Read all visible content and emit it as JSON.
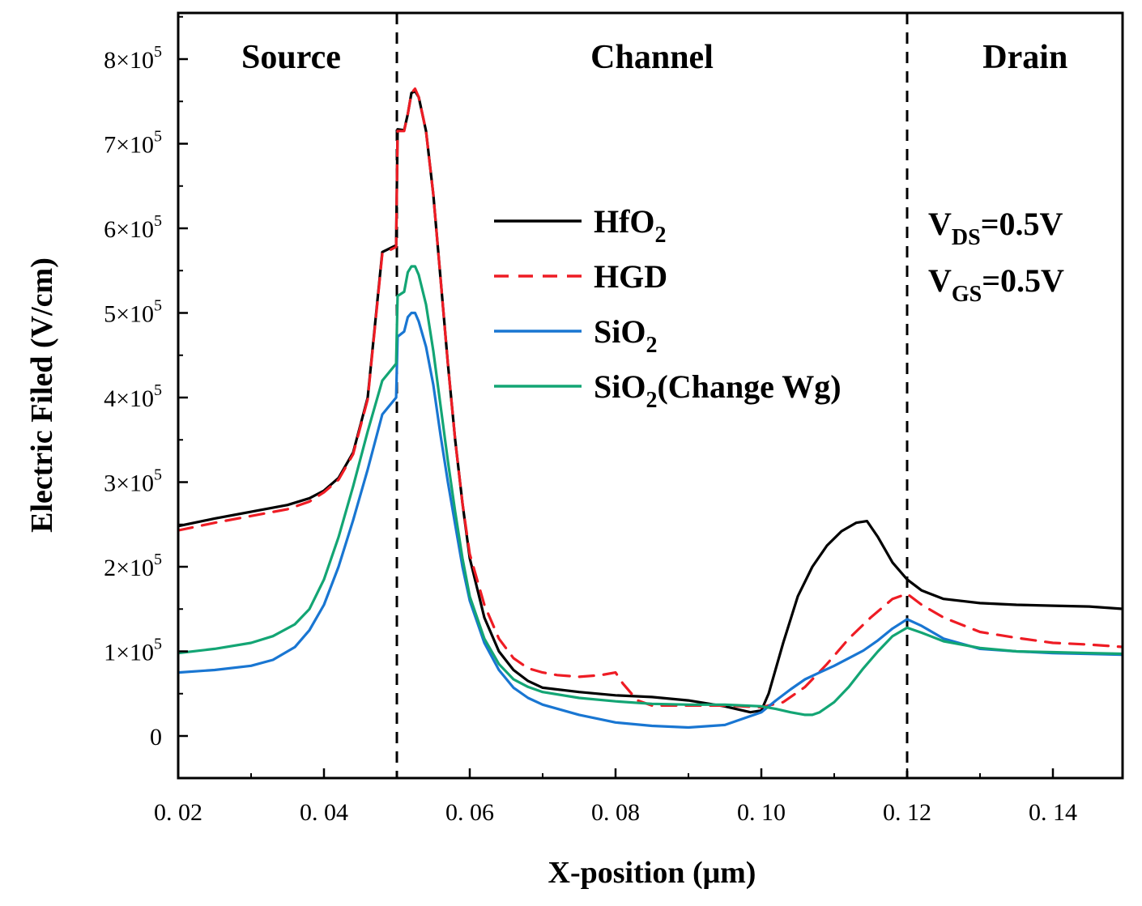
{
  "chart_data": {
    "type": "line",
    "title": "",
    "xlabel": "X-position (μm)",
    "ylabel": "Electric Filed (V/cm)",
    "xlim": [
      0.02,
      0.15
    ],
    "ylim": [
      -50000,
      850000
    ],
    "x_ticks": [
      0.02,
      0.04,
      0.06,
      0.08,
      0.1,
      0.12,
      0.14
    ],
    "x_tick_labels": [
      "0. 02",
      "0. 04",
      "0. 06",
      "0. 08",
      "0. 10",
      "0. 12",
      "0. 14"
    ],
    "y_ticks": [
      0,
      100000,
      200000,
      300000,
      400000,
      500000,
      600000,
      700000,
      800000
    ],
    "y_tick_labels": [
      {
        "mantissa": "0",
        "exp": ""
      },
      {
        "mantissa": "1×10",
        "exp": "5"
      },
      {
        "mantissa": "2×10",
        "exp": "5"
      },
      {
        "mantissa": "3×10",
        "exp": "5"
      },
      {
        "mantissa": "4×10",
        "exp": "5"
      },
      {
        "mantissa": "5×10",
        "exp": "5"
      },
      {
        "mantissa": "6×10",
        "exp": "5"
      },
      {
        "mantissa": "7×10",
        "exp": "5"
      },
      {
        "mantissa": "8×10",
        "exp": "5"
      }
    ],
    "regions": [
      {
        "label": "Source",
        "x_center": 0.0355
      },
      {
        "label": "Channel",
        "x_center": 0.085
      },
      {
        "label": "Drain",
        "x_center": 0.1362
      }
    ],
    "boundaries": [
      0.05,
      0.12
    ],
    "conditions": [
      {
        "main": "V",
        "sub": "DS",
        "rest": "=0.5V"
      },
      {
        "main": "V",
        "sub": "GS",
        "rest": "=0.5V"
      }
    ],
    "legend_position": "center",
    "series": [
      {
        "name": "HfO2",
        "legend": {
          "main": "HfO",
          "sub": "2",
          "rest": ""
        },
        "color": "#000000",
        "dash": "",
        "x": [
          0.02,
          0.025,
          0.03,
          0.035,
          0.038,
          0.04,
          0.042,
          0.044,
          0.046,
          0.048,
          0.0499,
          0.0501,
          0.051,
          0.0515,
          0.052,
          0.0525,
          0.053,
          0.054,
          0.055,
          0.056,
          0.057,
          0.058,
          0.059,
          0.06,
          0.062,
          0.064,
          0.066,
          0.068,
          0.07,
          0.075,
          0.08,
          0.085,
          0.09,
          0.095,
          0.0985,
          0.1,
          0.101,
          0.103,
          0.105,
          0.107,
          0.109,
          0.111,
          0.113,
          0.1145,
          0.116,
          0.118,
          0.12,
          0.122,
          0.125,
          0.13,
          0.135,
          0.14,
          0.145,
          0.15
        ],
        "y": [
          248000,
          257000,
          265000,
          273000,
          281000,
          290000,
          305000,
          335000,
          400000,
          572000,
          580000,
          717000,
          716000,
          735000,
          760000,
          762000,
          755000,
          715000,
          640000,
          540000,
          440000,
          350000,
          275000,
          210000,
          140000,
          100000,
          78000,
          65000,
          57000,
          52000,
          48000,
          46000,
          42000,
          35000,
          28000,
          30000,
          50000,
          110000,
          165000,
          200000,
          225000,
          242000,
          252000,
          254000,
          235000,
          205000,
          185000,
          172000,
          162000,
          157000,
          155000,
          154000,
          153000,
          150000
        ]
      },
      {
        "name": "HGD",
        "legend": {
          "main": "HGD",
          "sub": "",
          "rest": ""
        },
        "color": "#ee1c24",
        "dash": "18,12",
        "x": [
          0.02,
          0.025,
          0.03,
          0.035,
          0.038,
          0.04,
          0.042,
          0.044,
          0.046,
          0.048,
          0.0499,
          0.0501,
          0.051,
          0.0515,
          0.052,
          0.0525,
          0.053,
          0.054,
          0.055,
          0.056,
          0.057,
          0.058,
          0.059,
          0.06,
          0.062,
          0.064,
          0.066,
          0.068,
          0.07,
          0.072,
          0.075,
          0.078,
          0.08,
          0.081,
          0.083,
          0.085,
          0.09,
          0.095,
          0.1,
          0.103,
          0.106,
          0.109,
          0.112,
          0.115,
          0.118,
          0.12,
          0.122,
          0.125,
          0.13,
          0.135,
          0.14,
          0.145,
          0.15
        ],
        "y": [
          243000,
          252000,
          260000,
          268000,
          277000,
          288000,
          303000,
          333000,
          398000,
          570000,
          578000,
          715000,
          715000,
          735000,
          760000,
          765000,
          755000,
          715000,
          640000,
          540000,
          440000,
          350000,
          275000,
          215000,
          155000,
          115000,
          92000,
          80000,
          75000,
          72000,
          70000,
          72000,
          75000,
          62000,
          42000,
          36000,
          36000,
          36000,
          34000,
          40000,
          58000,
          85000,
          115000,
          140000,
          162000,
          168000,
          155000,
          140000,
          123000,
          116000,
          110000,
          108000,
          105000
        ]
      },
      {
        "name": "SiO2",
        "legend": {
          "main": "SiO",
          "sub": "2",
          "rest": ""
        },
        "color": "#1976d2",
        "dash": "",
        "x": [
          0.02,
          0.025,
          0.03,
          0.033,
          0.036,
          0.038,
          0.04,
          0.042,
          0.044,
          0.046,
          0.048,
          0.0499,
          0.0501,
          0.051,
          0.0515,
          0.052,
          0.0525,
          0.053,
          0.054,
          0.055,
          0.056,
          0.057,
          0.058,
          0.059,
          0.06,
          0.062,
          0.064,
          0.066,
          0.068,
          0.07,
          0.075,
          0.08,
          0.085,
          0.09,
          0.095,
          0.1,
          0.102,
          0.104,
          0.106,
          0.108,
          0.11,
          0.112,
          0.114,
          0.116,
          0.118,
          0.12,
          0.122,
          0.125,
          0.13,
          0.135,
          0.14,
          0.145,
          0.15
        ],
        "y": [
          75000,
          78000,
          83000,
          90000,
          105000,
          125000,
          155000,
          200000,
          255000,
          315000,
          380000,
          400000,
          472000,
          478000,
          495000,
          500000,
          500000,
          490000,
          460000,
          415000,
          355000,
          300000,
          250000,
          200000,
          160000,
          110000,
          78000,
          57000,
          45000,
          37000,
          25000,
          16000,
          12000,
          10000,
          13000,
          28000,
          42000,
          55000,
          67000,
          75000,
          83000,
          92000,
          101000,
          113000,
          127000,
          138000,
          130000,
          115000,
          103000,
          100000,
          98000,
          97000,
          96000
        ]
      },
      {
        "name": "SiO2(Change Wg)",
        "legend": {
          "main": "SiO",
          "sub": "2",
          "rest": "(Change Wg)"
        },
        "color": "#13a574",
        "dash": "",
        "x": [
          0.02,
          0.025,
          0.03,
          0.033,
          0.036,
          0.038,
          0.04,
          0.042,
          0.044,
          0.046,
          0.048,
          0.0499,
          0.0501,
          0.051,
          0.0515,
          0.052,
          0.0525,
          0.053,
          0.054,
          0.055,
          0.056,
          0.057,
          0.058,
          0.059,
          0.06,
          0.062,
          0.064,
          0.066,
          0.068,
          0.07,
          0.075,
          0.08,
          0.085,
          0.09,
          0.095,
          0.1,
          0.102,
          0.104,
          0.106,
          0.107,
          0.108,
          0.11,
          0.112,
          0.114,
          0.116,
          0.118,
          0.12,
          0.122,
          0.125,
          0.13,
          0.135,
          0.14,
          0.145,
          0.15
        ],
        "y": [
          98000,
          103000,
          110000,
          118000,
          132000,
          150000,
          185000,
          235000,
          295000,
          360000,
          420000,
          440000,
          520000,
          525000,
          548000,
          555000,
          555000,
          545000,
          510000,
          455000,
          390000,
          325000,
          265000,
          210000,
          165000,
          115000,
          85000,
          67000,
          58000,
          52000,
          45000,
          41000,
          38000,
          37000,
          37000,
          35000,
          32000,
          28000,
          25000,
          25000,
          28000,
          40000,
          58000,
          80000,
          100000,
          118000,
          128000,
          122000,
          112000,
          104000,
          100000,
          99000,
          98000,
          97000
        ]
      }
    ]
  }
}
